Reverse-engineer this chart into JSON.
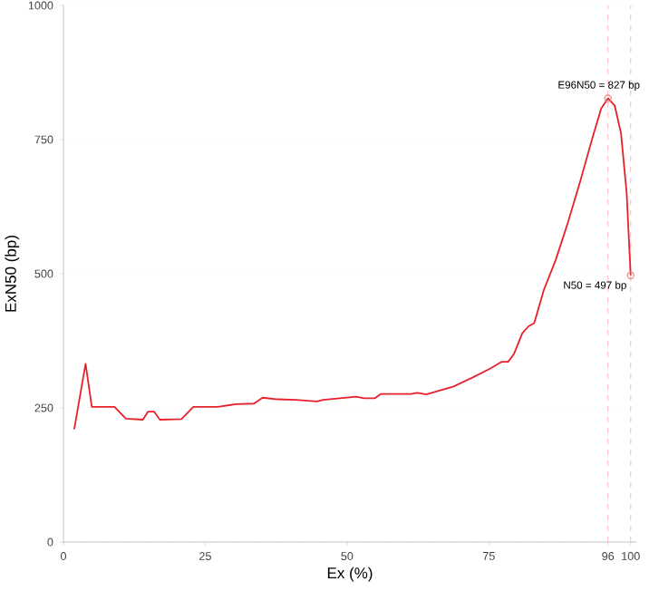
{
  "chart_data": {
    "type": "line",
    "xlabel": "Ex (%)",
    "ylabel": "ExN50 (bp)",
    "xlim": [
      0,
      101
    ],
    "ylim": [
      0,
      1000
    ],
    "xticks": [
      0,
      25,
      50,
      75,
      96,
      100
    ],
    "yticks": [
      0,
      250,
      500,
      750,
      1000
    ],
    "grid": "y",
    "series": [
      {
        "color": "#e8202a",
        "x": [
          1.9,
          3.9,
          5,
          9,
          11,
          14,
          14.9,
          16,
          17,
          20.8,
          22.9,
          27.2,
          30.4,
          33.6,
          35.1,
          37.8,
          41,
          44.7,
          45.8,
          51.6,
          53,
          54.9,
          56,
          61.3,
          62.4,
          64,
          65.6,
          68.8,
          72,
          75.2,
          77.3,
          78.4,
          79.4,
          80.9,
          82,
          83,
          84.7,
          86.8,
          88.9,
          91.1,
          93.2,
          94.8,
          96,
          97.2,
          98.3,
          99.3,
          100
        ],
        "values": [
          210,
          332,
          252,
          252,
          230,
          228,
          243,
          243,
          228,
          229,
          252,
          252,
          257,
          258,
          269,
          266,
          265,
          262,
          265,
          271,
          268,
          268,
          276,
          276,
          278,
          275,
          280,
          290,
          306,
          323,
          336,
          336,
          350,
          389,
          402,
          408,
          470,
          526,
          594,
          672,
          751,
          808,
          827,
          813,
          762,
          650,
          497
        ]
      },
      {
        "type": "scatter",
        "marker": "circle",
        "color": "#f08080",
        "x": [
          96,
          100
        ],
        "values": [
          827,
          497
        ]
      }
    ],
    "ref_lines": [
      {
        "axis": "x",
        "value": 96,
        "color": "#ffc0cb",
        "line_style": "dashed"
      },
      {
        "axis": "x",
        "value": 100,
        "color": "#ffc0cb",
        "line_style": "dashed"
      }
    ],
    "annotations": [
      {
        "text": "E96N50 = 827 bp",
        "x": 96,
        "y": 827
      },
      {
        "text": "N50 = 497 bp",
        "x": 100,
        "y": 497
      }
    ]
  }
}
